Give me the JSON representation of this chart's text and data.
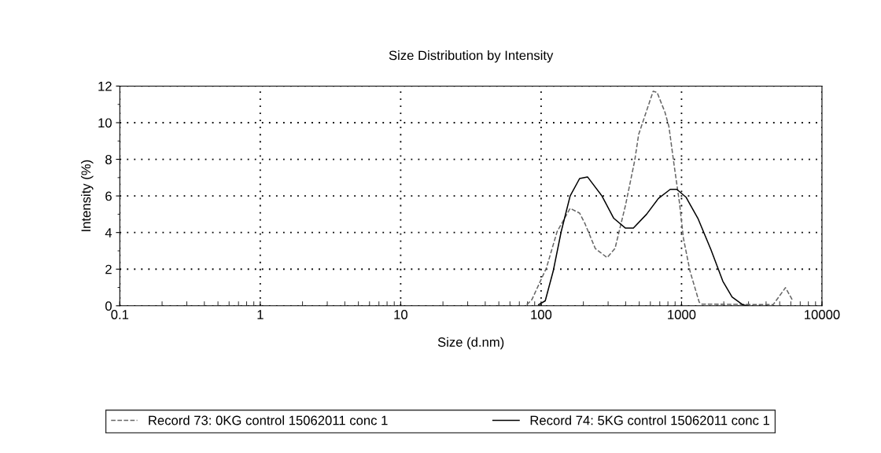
{
  "chart_data": {
    "type": "line",
    "title": "Size Distribution by Intensity",
    "xlabel": "Size (d.nm)",
    "ylabel": "Intensity (%)",
    "log": "x",
    "xlim": [
      0.1,
      10000
    ],
    "xticks": [
      0.1,
      1,
      10,
      100,
      1000,
      10000
    ],
    "ylim": [
      0,
      12
    ],
    "yticks": [
      0,
      2,
      4,
      6,
      8,
      10,
      12
    ],
    "grid": true,
    "legend": "bottom",
    "marker": "none",
    "series": [
      {
        "name": "Record 73: 0KG control 15062011 conc 1",
        "color": "#666666",
        "line_style": "dashed",
        "x": [
          79,
          86,
          109,
          130,
          161,
          188,
          205,
          243,
          295,
          336,
          399,
          464,
          495,
          628,
          670,
          762,
          813,
          887,
          966,
          1031,
          1148,
          1335,
          1393,
          4490,
          5500,
          6130
        ],
        "values": [
          0.06,
          0.34,
          2.06,
          4.05,
          5.32,
          5.06,
          4.5,
          3.13,
          2.63,
          3.13,
          5.49,
          7.93,
          9.36,
          11.72,
          11.65,
          10.57,
          9.79,
          7.64,
          5.64,
          3.7,
          1.9,
          0.2,
          0.09,
          0.06,
          0.99,
          0.34
        ]
      },
      {
        "name": "Record 74: 5KG control 15062011 conc 1",
        "color": "#000000",
        "line_style": "solid",
        "x": [
          96,
          107,
          122,
          139,
          161,
          188,
          214,
          271,
          329,
          399,
          454,
          564,
          684,
          831,
          925,
          1076,
          1307,
          1620,
          1968,
          2290,
          2720,
          2950
        ],
        "values": [
          0.06,
          0.27,
          1.9,
          4.05,
          6.0,
          6.95,
          7.04,
          6.0,
          4.78,
          4.24,
          4.24,
          5.0,
          5.86,
          6.36,
          6.36,
          5.93,
          4.78,
          3.06,
          1.34,
          0.48,
          0.06,
          0
        ]
      }
    ]
  }
}
